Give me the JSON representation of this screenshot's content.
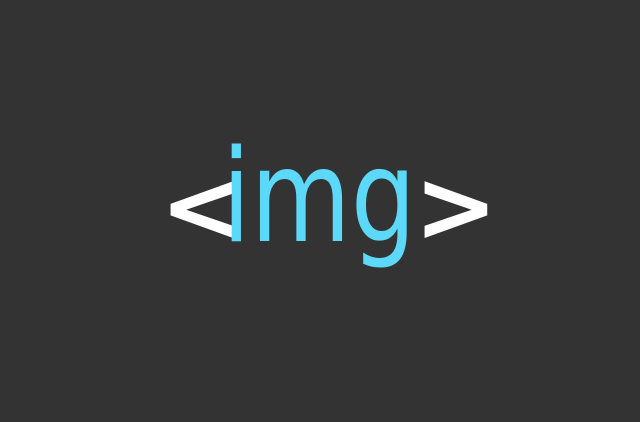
{
  "logo": {
    "open_bracket": "<",
    "tag": "img",
    "close_bracket": ">"
  },
  "colors": {
    "background": "#333333",
    "bracket": "#FFFFFF",
    "tag": "#5CD8F8"
  }
}
